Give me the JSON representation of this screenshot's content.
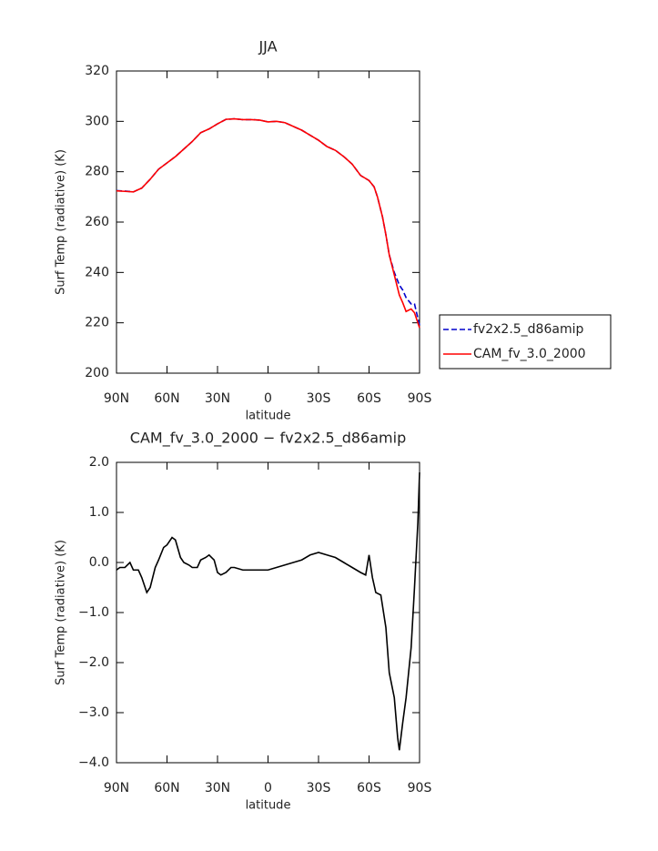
{
  "chart_data": [
    {
      "type": "line",
      "title": "JJA",
      "x_label": "latitude",
      "y_label": "Surf Temp (radiative) (K)",
      "x": [
        90,
        85,
        80,
        75,
        70,
        65,
        60,
        55,
        50,
        45,
        40,
        35,
        30,
        25,
        20,
        15,
        10,
        5,
        0,
        -5,
        -10,
        -15,
        -20,
        -25,
        -30,
        -35,
        -40,
        -45,
        -50,
        -55,
        -60,
        -63,
        -65,
        -68,
        -70,
        -72,
        -75,
        -78,
        -80,
        -82,
        -85,
        -87,
        -90
      ],
      "series": [
        {
          "name": "fv2x2.5_d86amip",
          "color": "#0000cc",
          "line_style": "dashed",
          "values": [
            272.5,
            272.3,
            272,
            273.5,
            277,
            281,
            283.5,
            286,
            289,
            292,
            295.5,
            297,
            299,
            300.8,
            301,
            300.7,
            300.7,
            300.5,
            299.8,
            300,
            299.5,
            298,
            296.5,
            294.5,
            292.5,
            290,
            288.5,
            286,
            283,
            278.5,
            276.5,
            274,
            270,
            262,
            255,
            247,
            240,
            235,
            233,
            230,
            227.5,
            227.5,
            219
          ]
        },
        {
          "name": "CAM_fv_3.0_2000",
          "color": "#ff0000",
          "line_style": "solid",
          "values": [
            272.4,
            272.2,
            272,
            273.5,
            277,
            281,
            283.5,
            286,
            289,
            292,
            295.5,
            297,
            299,
            300.8,
            301,
            300.7,
            300.7,
            300.5,
            299.8,
            300,
            299.5,
            298,
            296.5,
            294.5,
            292.5,
            290,
            288.5,
            286,
            283,
            278.5,
            276.5,
            274,
            270,
            262,
            255,
            247,
            239,
            231,
            228,
            224.5,
            225.5,
            224,
            218
          ]
        }
      ],
      "xlim": [
        90,
        -90
      ],
      "ylim": [
        200,
        320
      ],
      "xticks": [
        {
          "value": 90,
          "label": "90N"
        },
        {
          "value": 60,
          "label": "60N"
        },
        {
          "value": 30,
          "label": "30N"
        },
        0,
        {
          "value": -30,
          "label": "30S"
        },
        {
          "value": -60,
          "label": "60S"
        },
        {
          "value": -90,
          "label": "90S"
        }
      ],
      "yticks": [
        200,
        220,
        240,
        260,
        280,
        300,
        320
      ],
      "legend": "right"
    },
    {
      "type": "line",
      "title": "CAM_fv_3.0_2000 − fv2x2.5_d86amip",
      "x_label": "latitude",
      "y_label": "Surf Temp (radiative) (K)",
      "x": [
        90,
        88,
        85,
        82,
        80,
        77,
        75,
        72,
        70,
        67,
        65,
        62,
        60,
        57,
        55,
        52,
        50,
        47,
        45,
        42,
        40,
        37,
        35,
        32,
        30,
        28,
        25,
        22,
        20,
        15,
        10,
        5,
        0,
        -5,
        -10,
        -15,
        -20,
        -25,
        -30,
        -35,
        -40,
        -45,
        -50,
        -55,
        -58,
        -60,
        -62,
        -64,
        -67,
        -70,
        -72,
        -75,
        -77,
        -78,
        -80,
        -82,
        -85,
        -87,
        -89,
        -90
      ],
      "series": [
        {
          "color": "#000000",
          "line_style": "solid",
          "values": [
            -0.15,
            -0.1,
            -0.1,
            0,
            -0.15,
            -0.15,
            -0.3,
            -0.6,
            -0.5,
            -0.1,
            0.05,
            0.3,
            0.35,
            0.5,
            0.45,
            0.1,
            0,
            -0.05,
            -0.1,
            -0.1,
            0.05,
            0.1,
            0.15,
            0.05,
            -0.2,
            -0.25,
            -0.2,
            -0.1,
            -0.1,
            -0.15,
            -0.15,
            -0.15,
            -0.15,
            -0.1,
            -0.05,
            0,
            0.05,
            0.15,
            0.2,
            0.15,
            0.1,
            0,
            -0.1,
            -0.2,
            -0.25,
            0.15,
            -0.3,
            -0.6,
            -0.65,
            -1.3,
            -2.2,
            -2.7,
            -3.5,
            -3.75,
            -3.2,
            -2.7,
            -1.7,
            -0.5,
            0.8,
            1.8
          ]
        }
      ],
      "xlim": [
        90,
        -90
      ],
      "ylim": [
        -4,
        2
      ],
      "xticks": [
        {
          "value": 90,
          "label": "90N"
        },
        {
          "value": 60,
          "label": "60N"
        },
        {
          "value": 30,
          "label": "30N"
        },
        0,
        {
          "value": -30,
          "label": "30S"
        },
        {
          "value": -60,
          "label": "60S"
        },
        {
          "value": -90,
          "label": "90S"
        }
      ],
      "yticks": [
        {
          "value": -4,
          "label": "−4.0"
        },
        {
          "value": -3,
          "label": "−3.0"
        },
        {
          "value": -2,
          "label": "−2.0"
        },
        {
          "value": -1,
          "label": "−1.0"
        },
        {
          "value": 0,
          "label": "0.0"
        },
        {
          "value": 1,
          "label": "1.0"
        },
        {
          "value": 2,
          "label": "2.0"
        }
      ]
    }
  ]
}
